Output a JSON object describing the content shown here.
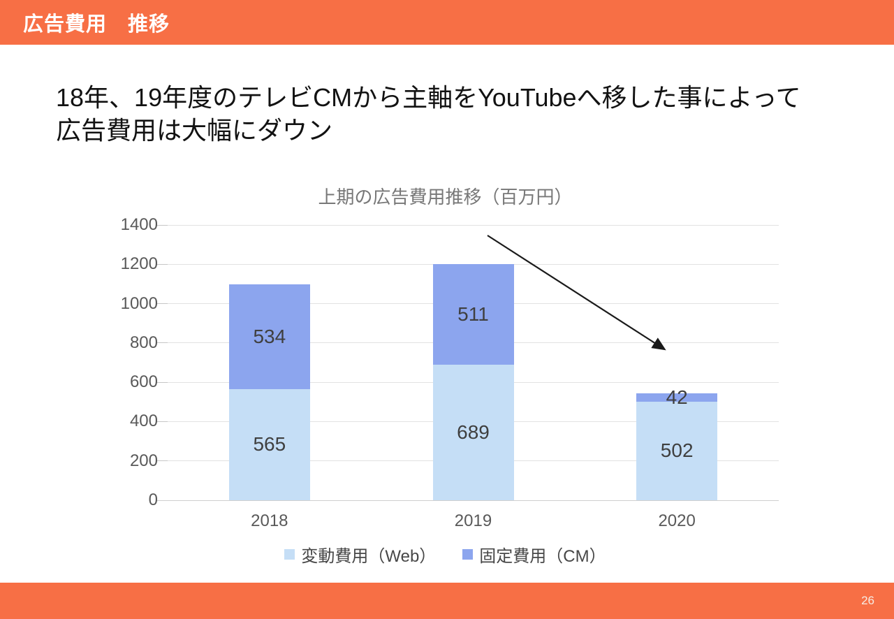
{
  "header": {
    "title": "広告費用　推移"
  },
  "lead": {
    "lines": [
      "18年、19年度のテレビCMから主軸をYouTubeへ移した事によって",
      "広告費用は大幅にダウン"
    ]
  },
  "chart_data": {
    "type": "bar",
    "stacked": true,
    "title": "上期の広告費用推移（百万円）",
    "categories": [
      "2018",
      "2019",
      "2020"
    ],
    "series": [
      {
        "name": "変動費用（Web）",
        "color": "#C5DEF6",
        "values": [
          565,
          689,
          502
        ]
      },
      {
        "name": "固定費用（CM）",
        "color": "#8CA5EE",
        "values": [
          534,
          511,
          42
        ]
      }
    ],
    "totals": [
      1099,
      1200,
      544
    ],
    "ylim": [
      0,
      1400
    ],
    "yticks": [
      0,
      200,
      400,
      600,
      800,
      1000,
      1200,
      1400
    ],
    "grid": true,
    "legend_position": "bottom",
    "value_labels": true,
    "annotation": {
      "type": "arrow",
      "meaning": "sharp decrease toward 2020"
    }
  },
  "footer": {
    "page_number": "26"
  },
  "colors": {
    "accent_orange": "#F76F45",
    "series_web": "#C5DEF6",
    "series_cm": "#8CA5EE",
    "axis_text": "#595959",
    "chart_title_text": "#777777",
    "value_text": "#3F3F3F",
    "gridline": "#E2E2E2",
    "arrow": "#1A1A1A"
  }
}
